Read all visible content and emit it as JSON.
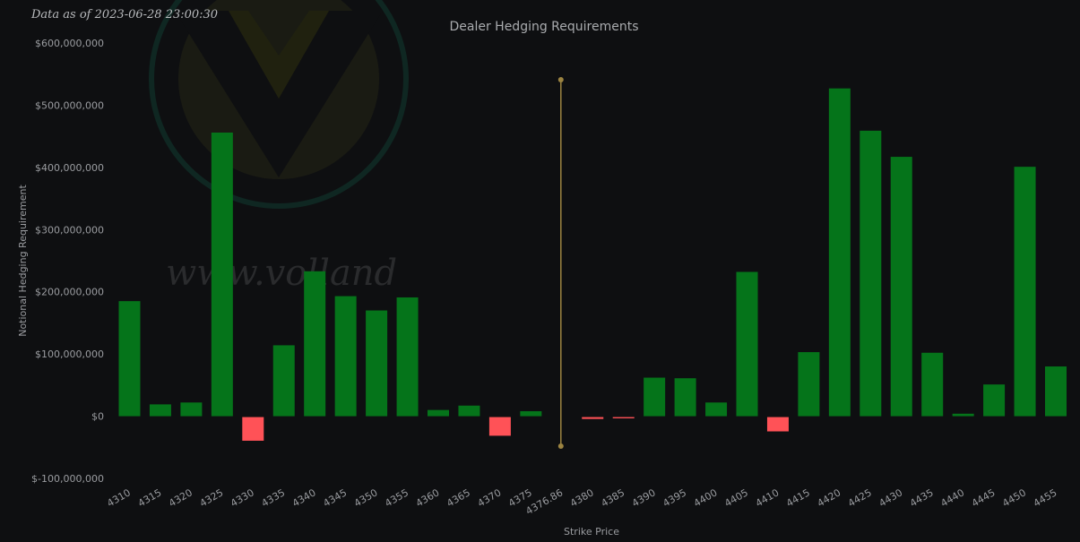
{
  "as_of": "Data as of 2023-06-28 23:00:30",
  "watermark": {
    "text": "www.volland",
    "icon": "volland-logo"
  },
  "colors": {
    "positive": "#05741a",
    "negative": "#ff5257",
    "spot_line": "#9c8441",
    "background": "#0e0f11"
  },
  "chart_data": {
    "type": "bar",
    "title": "Dealer Hedging Requirements",
    "xlabel": "Strike Price",
    "ylabel": "Notional Hedging Requirement",
    "ylim": [
      -100000000,
      600000000
    ],
    "yticks": [
      600000000,
      500000000,
      400000000,
      300000000,
      200000000,
      100000000,
      0,
      -100000000
    ],
    "ytick_labels": [
      "$600,000,000",
      "$500,000,000",
      "$400,000,000",
      "$300,000,000",
      "$200,000,000",
      "$100,000,000",
      "$0",
      "$-100,000,000"
    ],
    "grid": false,
    "spot": {
      "label": "4376.86",
      "after_index": 13
    },
    "categories": [
      "4310",
      "4315",
      "4320",
      "4325",
      "4330",
      "4335",
      "4340",
      "4345",
      "4350",
      "4355",
      "4360",
      "4365",
      "4370",
      "4375",
      "4380",
      "4385",
      "4390",
      "4395",
      "4400",
      "4405",
      "4410",
      "4415",
      "4420",
      "4425",
      "4430",
      "4435",
      "4440",
      "4445",
      "4450",
      "4455"
    ],
    "values": [
      185000000,
      19000000,
      22000000,
      456000000,
      -38000000,
      114000000,
      233000000,
      193000000,
      170000000,
      191000000,
      10000000,
      17000000,
      -30000000,
      8000000,
      -3000000,
      -2000000,
      62000000,
      61000000,
      22000000,
      232000000,
      -23000000,
      103000000,
      527000000,
      459000000,
      417000000,
      102000000,
      4000000,
      51000000,
      401000000,
      80000000
    ]
  }
}
